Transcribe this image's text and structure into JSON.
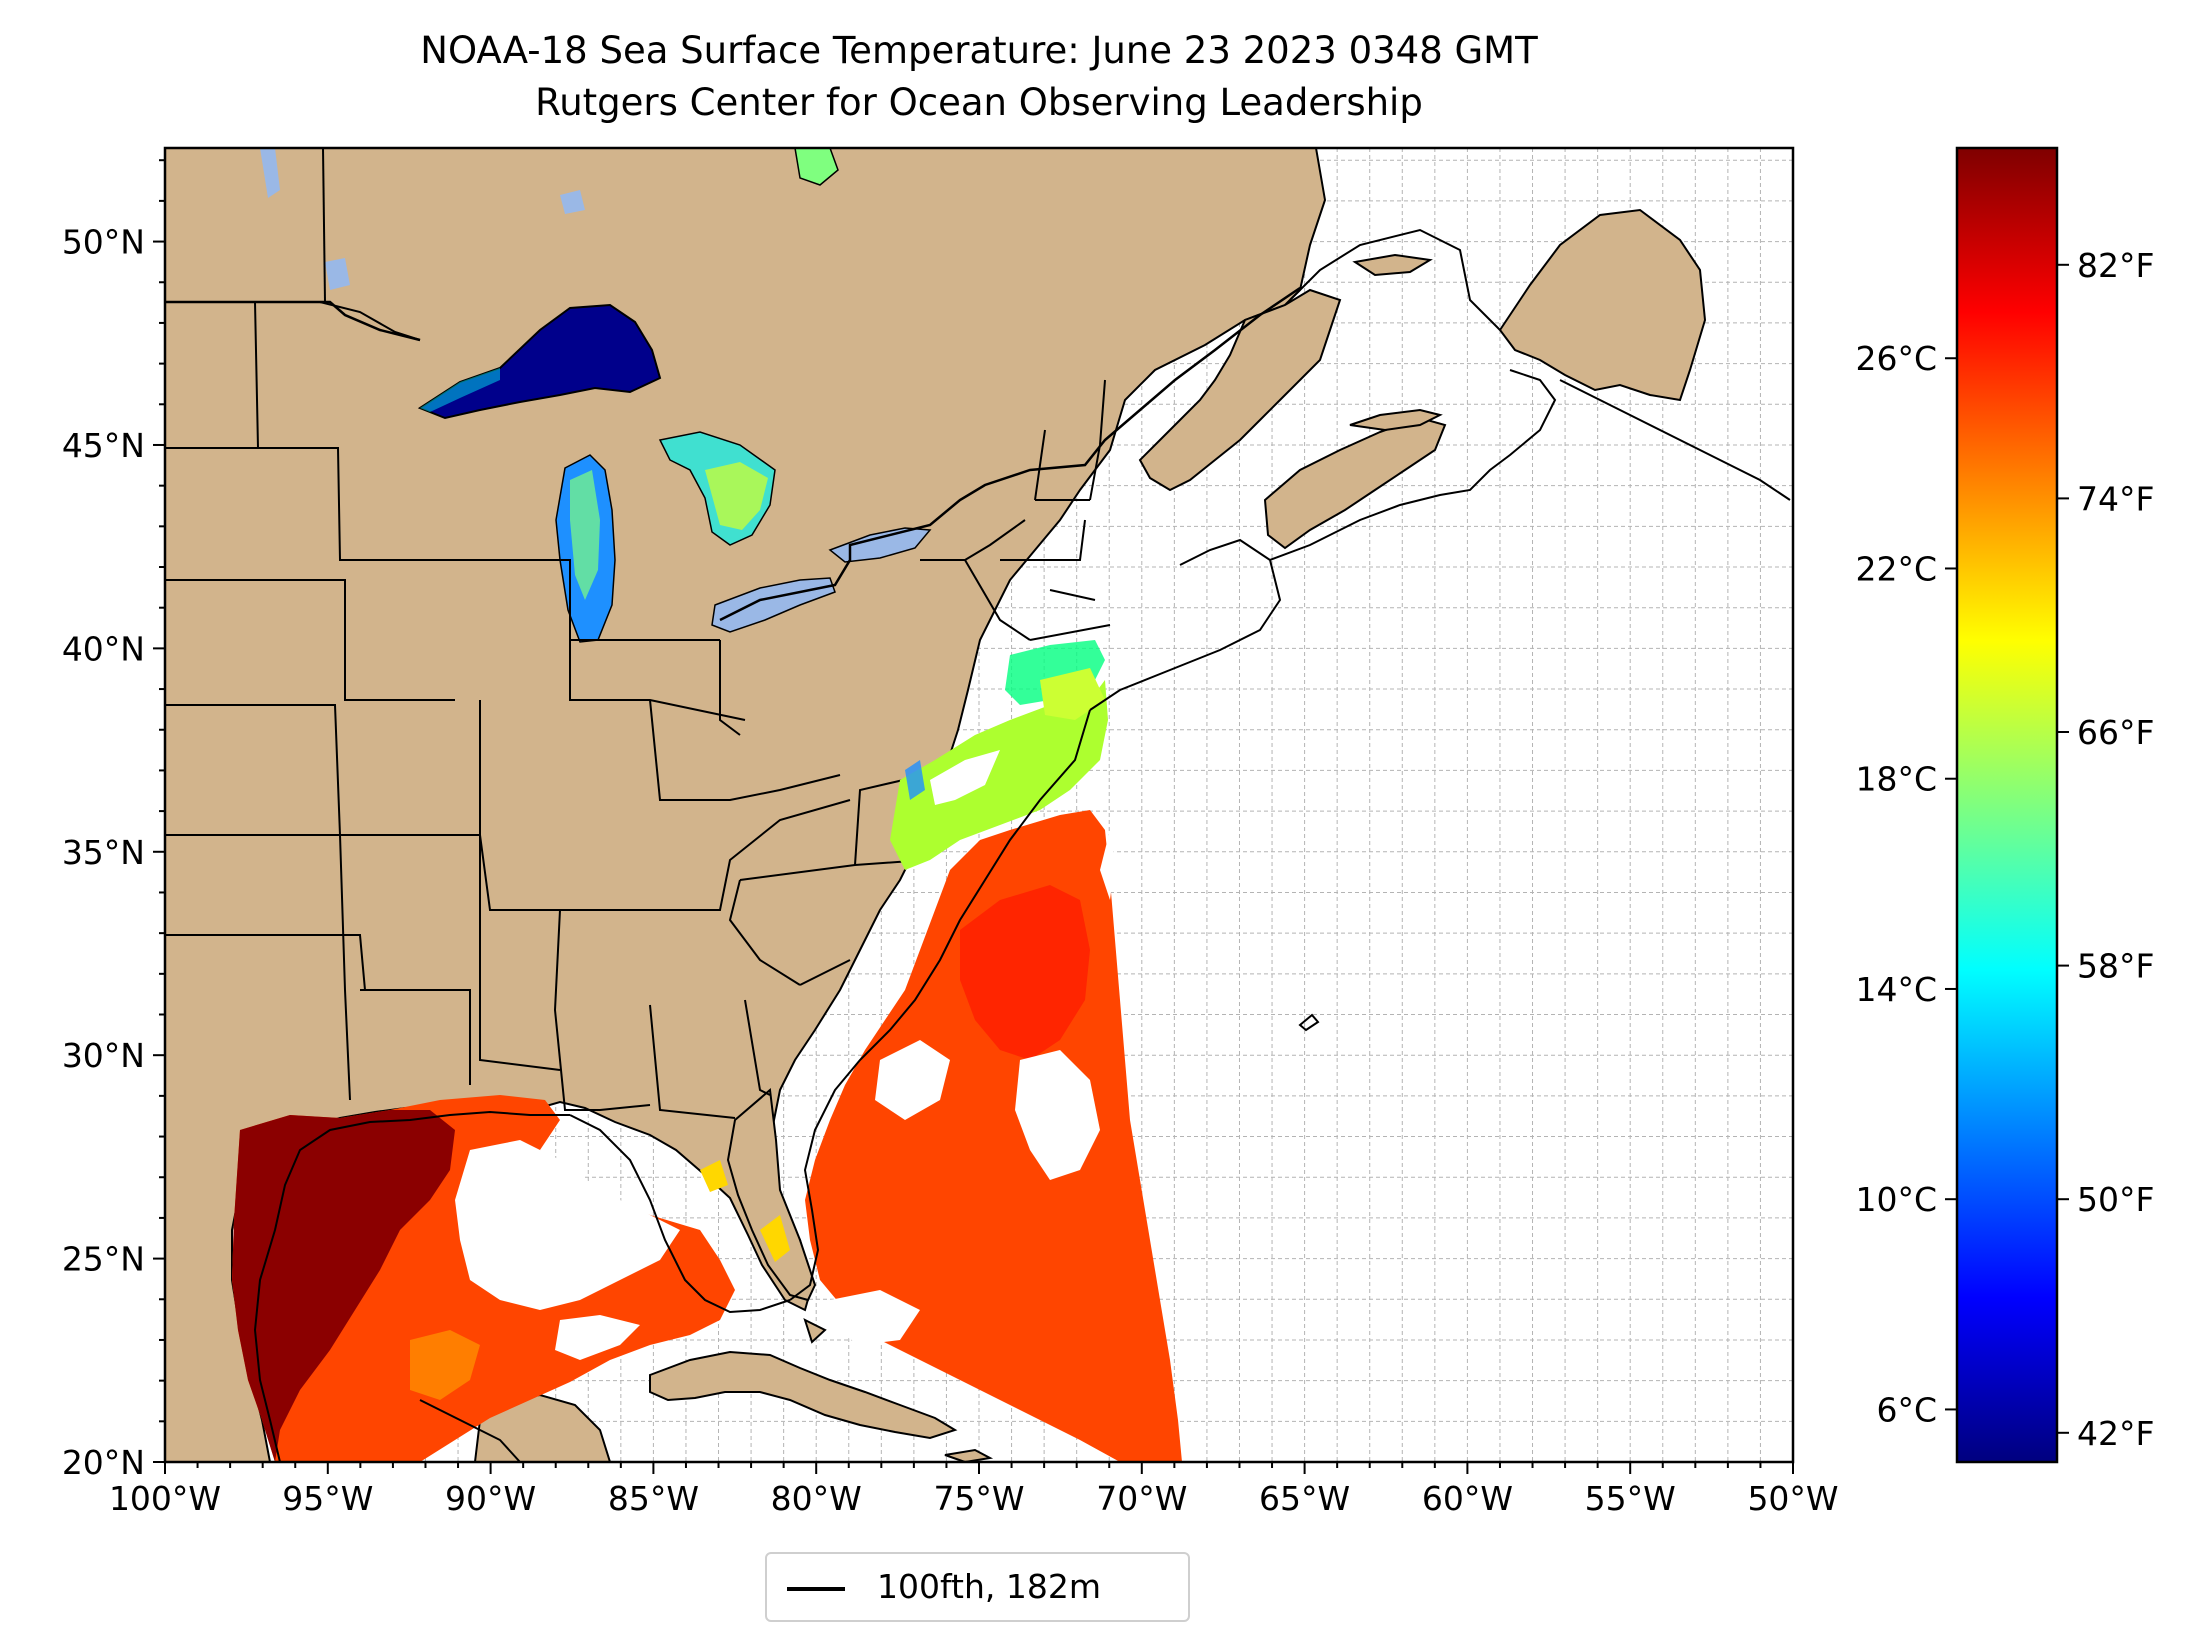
{
  "title": {
    "line1": "NOAA-18 Sea Surface Temperature: June 23 2023 0348 GMT",
    "line2": "Rutgers Center for Ocean Observing Leadership"
  },
  "map": {
    "projection": "plate carree",
    "lon_range": [
      -100,
      -50
    ],
    "lat_range": [
      20,
      52.3
    ],
    "gridlines": "dashed light gray, 1 degree spacing",
    "land_color": "#d2b48c",
    "lake_color": "#9ab8e6",
    "ocean_nodata_color": "#ffffff",
    "lat_ticks": [
      {
        "value": 50,
        "label": "50°N"
      },
      {
        "value": 45,
        "label": "45°N"
      },
      {
        "value": 40,
        "label": "40°N"
      },
      {
        "value": 35,
        "label": "35°N"
      },
      {
        "value": 30,
        "label": "30°N"
      },
      {
        "value": 25,
        "label": "25°N"
      },
      {
        "value": 20,
        "label": "20°N"
      }
    ],
    "lon_ticks": [
      {
        "value": -100,
        "label": "100°W"
      },
      {
        "value": -95,
        "label": "95°W"
      },
      {
        "value": -90,
        "label": "90°W"
      },
      {
        "value": -85,
        "label": "85°W"
      },
      {
        "value": -80,
        "label": "80°W"
      },
      {
        "value": -75,
        "label": "75°W"
      },
      {
        "value": -70,
        "label": "70°W"
      },
      {
        "value": -65,
        "label": "65°W"
      },
      {
        "value": -60,
        "label": "60°W"
      },
      {
        "value": -55,
        "label": "55°W"
      },
      {
        "value": -50,
        "label": "50°W"
      }
    ]
  },
  "colorbar": {
    "colormap": "jet",
    "colors": [
      "#00007f",
      "#0000ff",
      "#007fff",
      "#00ffff",
      "#7fff7f",
      "#ffff00",
      "#ff7f00",
      "#ff0000",
      "#7f0000"
    ],
    "celsius_range": [
      5.0,
      30.0
    ],
    "celsius_ticks": [
      {
        "value": 6,
        "label": "6°C"
      },
      {
        "value": 10,
        "label": "10°C"
      },
      {
        "value": 14,
        "label": "14°C"
      },
      {
        "value": 18,
        "label": "18°C"
      },
      {
        "value": 22,
        "label": "22°C"
      },
      {
        "value": 26,
        "label": "26°C"
      }
    ],
    "fahrenheit_ticks": [
      {
        "value": 42,
        "label": "42°F"
      },
      {
        "value": 50,
        "label": "50°F"
      },
      {
        "value": 58,
        "label": "58°F"
      },
      {
        "value": 66,
        "label": "66°F"
      },
      {
        "value": 74,
        "label": "74°F"
      },
      {
        "value": 82,
        "label": "82°F"
      }
    ]
  },
  "legend": {
    "label": "100fth, 182m",
    "line_color": "#000000"
  }
}
